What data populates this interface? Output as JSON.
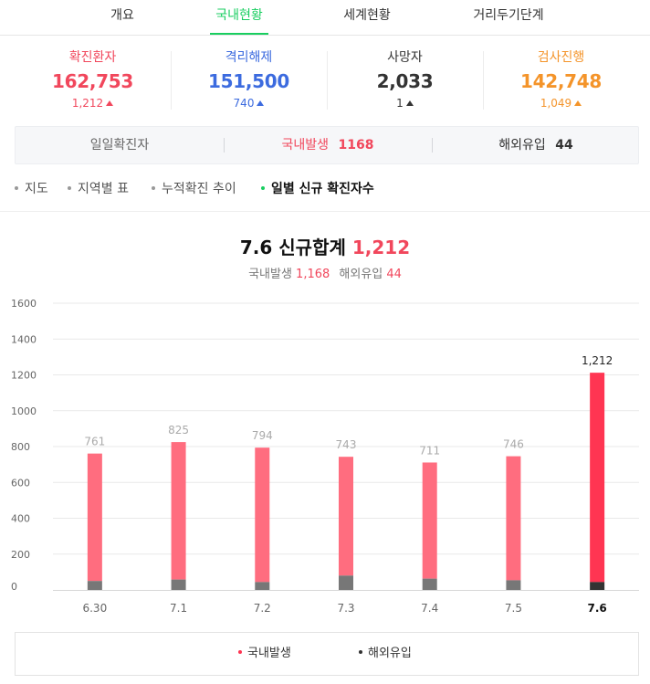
{
  "tabs": [
    {
      "label": "개요",
      "active": false
    },
    {
      "label": "국내현황",
      "active": true
    },
    {
      "label": "세계현황",
      "active": false
    },
    {
      "label": "거리두기단계",
      "active": false
    }
  ],
  "stats": [
    {
      "label": "확진환자",
      "value": "162,753",
      "delta": "1,212",
      "color": "#f1475c"
    },
    {
      "label": "격리해제",
      "value": "151,500",
      "delta": "740",
      "color": "#3c6bdf"
    },
    {
      "label": "사망자",
      "value": "2,033",
      "delta": "1",
      "color": "#333333"
    },
    {
      "label": "검사진행",
      "value": "142,748",
      "delta": "1,049",
      "color": "#f4942a"
    }
  ],
  "daily": {
    "label": "일일확진자",
    "domestic_label": "국내발생",
    "domestic_value": "1168",
    "overseas_label": "해외유입",
    "overseas_value": "44"
  },
  "subnav": [
    {
      "label": "지도",
      "active": false
    },
    {
      "label": "지역별 표",
      "active": false
    },
    {
      "label": "누적확진 추이",
      "active": false
    },
    {
      "label": "일별 신규 확진자수",
      "active": true
    }
  ],
  "summary": {
    "title": "7.6 신규합계",
    "total": "1,212",
    "domestic_label": "국내발생",
    "domestic_value": "1,168",
    "overseas_label": "해외유입",
    "overseas_value": "44"
  },
  "chart_data": {
    "type": "bar",
    "stacked": true,
    "categories": [
      "6.30",
      "7.1",
      "7.2",
      "7.3",
      "7.4",
      "7.5",
      "7.6"
    ],
    "highlight_index": 6,
    "totals": [
      761,
      825,
      794,
      743,
      711,
      746,
      1212
    ],
    "series": [
      {
        "name": "해외유입",
        "values": [
          50,
          58,
          44,
          80,
          63,
          54,
          44
        ],
        "color": "#777777",
        "highlight_color": "#333333"
      },
      {
        "name": "국내발생",
        "values": [
          711,
          767,
          750,
          663,
          648,
          692,
          1168
        ],
        "color": "#ff6d7f",
        "highlight_color": "#ff3552"
      }
    ],
    "yticks": [
      0,
      200,
      400,
      600,
      800,
      1000,
      1200,
      1400,
      1600
    ],
    "ylim": [
      0,
      1600
    ],
    "grid": true
  },
  "legend": [
    {
      "label": "국내발생",
      "color": "#ff3552"
    },
    {
      "label": "해외유입",
      "color": "#333333"
    }
  ]
}
